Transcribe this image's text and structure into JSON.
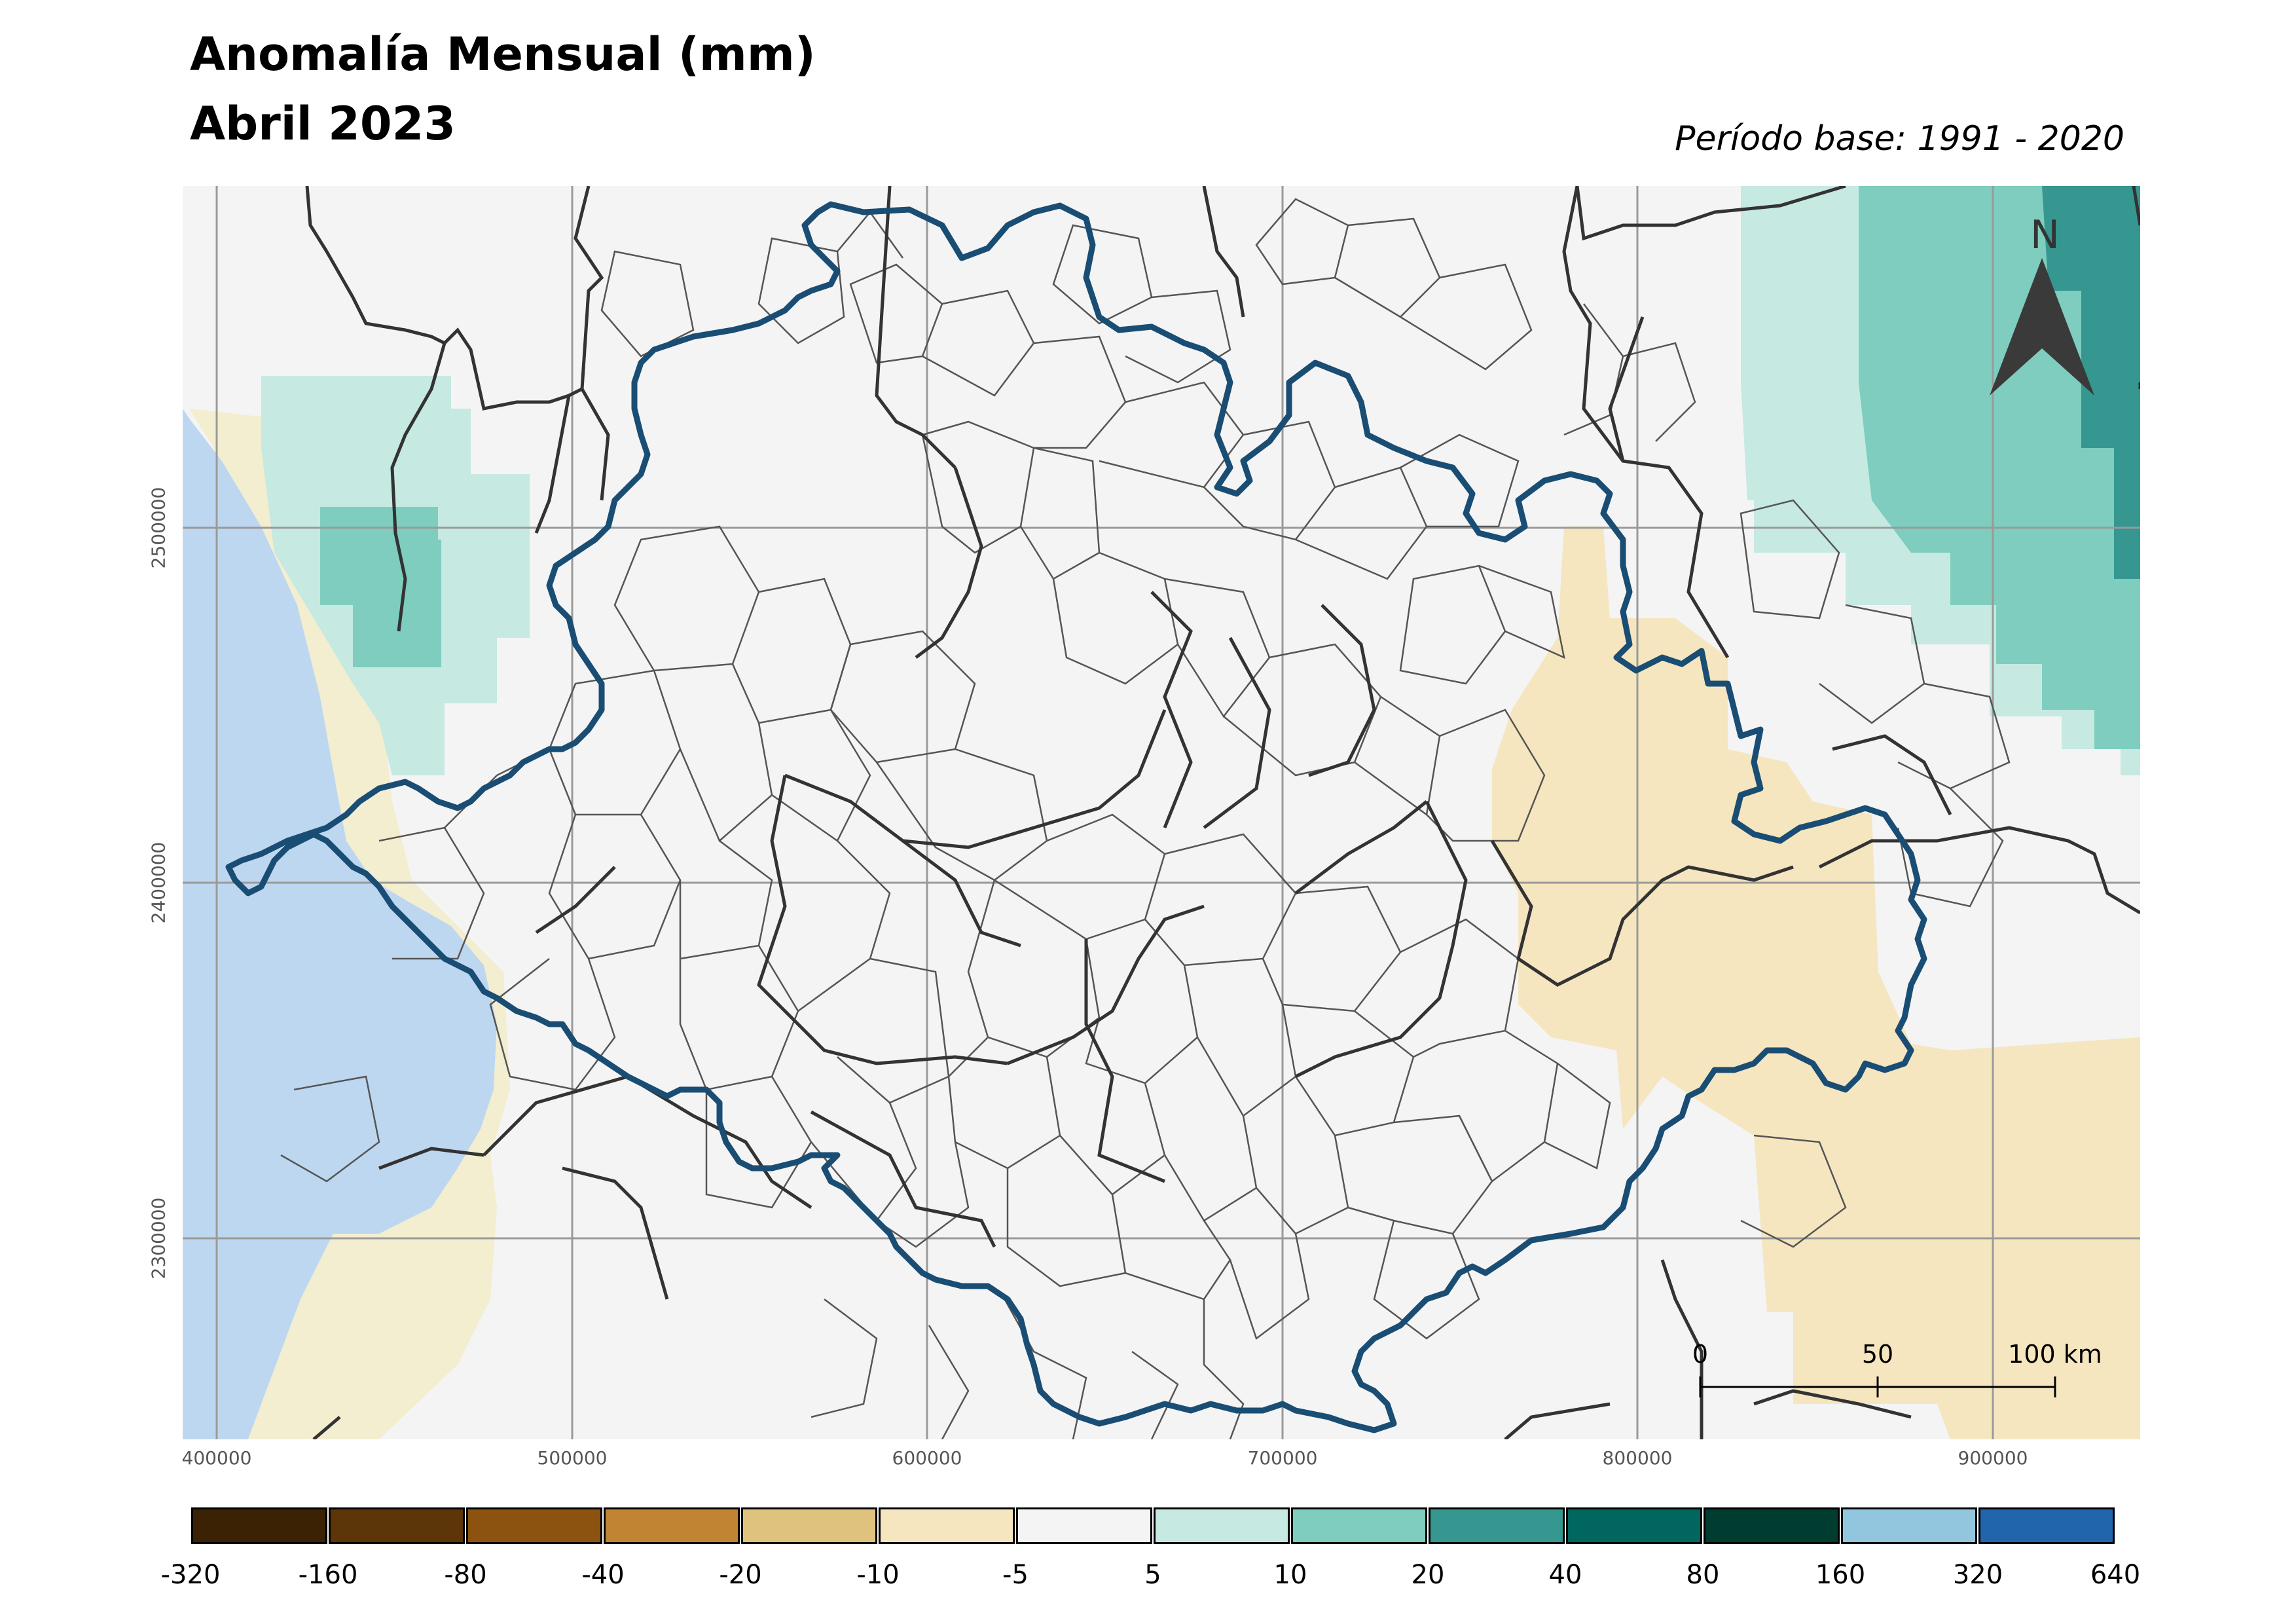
{
  "title": {
    "line1": "Anomalía Mensual (mm)",
    "line2": "Abril 2023"
  },
  "base_period": "Período base: 1991 - 2020",
  "north_arrow": {
    "label": "N",
    "icon": "north-arrow-icon"
  },
  "scale_bar": {
    "ticks": [
      "0",
      "50",
      "100 km"
    ]
  },
  "axes": {
    "x_labels": [
      "400000",
      "500000",
      "600000",
      "700000",
      "800000",
      "900000"
    ],
    "y_labels": [
      "2500000",
      "2400000",
      "2300000"
    ]
  },
  "legend": {
    "ticks": [
      "-320",
      "-160",
      "-80",
      "-40",
      "-20",
      "-10",
      "-5",
      "5",
      "10",
      "20",
      "40",
      "80",
      "160",
      "320",
      "640"
    ],
    "colors": [
      "#3b2204",
      "#5c3508",
      "#8c5310",
      "#c08433",
      "#e0c27f",
      "#f5e6c0",
      "#f4f4f4",
      "#c6e9e2",
      "#7ecdbf",
      "#35978f",
      "#01665e",
      "#003c30",
      "#92c5de",
      "#2166ac"
    ]
  },
  "map_colors": {
    "background": "#f4f4f4",
    "ocean": "#bed7f0",
    "state_outline": "#1a4d74",
    "municipal_borders": "#555555",
    "grid": "#9a9a9a"
  }
}
